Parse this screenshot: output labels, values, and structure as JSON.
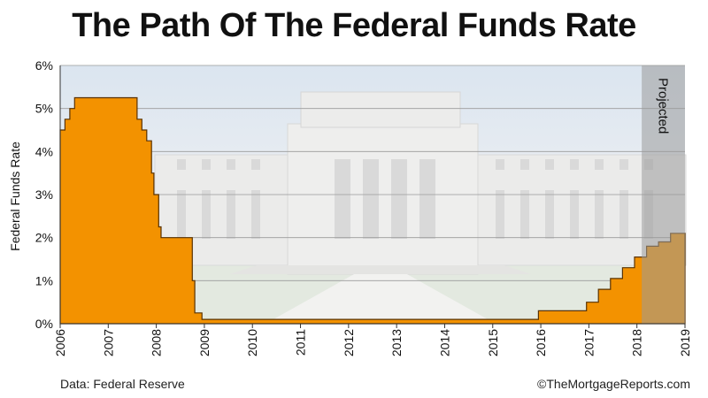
{
  "header": {
    "title": "The Path Of The Federal Funds Rate"
  },
  "footer": {
    "source": "Data: Federal Reserve",
    "credit": "©TheMortgageReports.com"
  },
  "chart_data": {
    "type": "area",
    "title": "The Path Of The Federal Funds Rate",
    "xlabel": "",
    "ylabel": "Federal Funds Rate",
    "xlim": [
      2006,
      2019
    ],
    "ylim": [
      0,
      6
    ],
    "x_ticks": [
      "2006",
      "2007",
      "2008",
      "2009",
      "2010",
      "2011",
      "2012",
      "2013",
      "2014",
      "2015",
      "2016",
      "2017",
      "2018",
      "2019"
    ],
    "y_ticks": [
      "0%",
      "1%",
      "2%",
      "3%",
      "4%",
      "5%",
      "6%"
    ],
    "y_tick_values": [
      0,
      1,
      2,
      3,
      4,
      5,
      6
    ],
    "grid": true,
    "area_color": "#f39200",
    "projected_region": {
      "label": "Projected",
      "x_start": 2018.1,
      "x_end": 2019
    },
    "series": [
      {
        "x": [
          2006.0,
          2006.1,
          2006.1,
          2006.2,
          2006.2,
          2006.3,
          2006.3,
          2006.4,
          2006.4,
          2007.6,
          2007.6,
          2007.7,
          2007.7,
          2007.8,
          2007.8,
          2007.9,
          2007.9,
          2007.95,
          2007.95,
          2008.05,
          2008.05,
          2008.1,
          2008.1,
          2008.15,
          2008.15,
          2008.2,
          2008.2,
          2008.3,
          2008.3,
          2008.75,
          2008.75,
          2008.8,
          2008.8,
          2008.95,
          2008.95,
          2015.95,
          2015.95,
          2016.95,
          2016.95,
          2017.2,
          2017.2,
          2017.45,
          2017.45,
          2017.7,
          2017.7,
          2017.95,
          2017.95,
          2018.2,
          2018.2,
          2018.45,
          2018.45,
          2018.7,
          2018.7,
          2018.95,
          2018.95,
          2019.0
        ],
        "y": [
          4.5,
          4.5,
          4.75,
          4.75,
          5.0,
          5.0,
          5.25,
          5.25,
          5.25,
          5.25,
          4.75,
          4.75,
          4.5,
          4.5,
          4.25,
          4.25,
          3.5,
          3.5,
          3.0,
          3.0,
          2.25,
          2.25,
          2.0,
          2.0,
          2.0,
          2.0,
          2.0,
          2.0,
          2.0,
          2.0,
          1.0,
          1.0,
          0.25,
          0.25,
          0.1,
          0.1,
          0.3,
          0.3,
          0.5,
          0.5,
          0.8,
          0.8,
          1.05,
          1.05,
          1.3,
          1.3,
          1.55,
          1.55,
          1.8,
          1.8,
          1.9,
          1.9,
          2.1,
          2.1,
          2.1,
          2.1
        ]
      }
    ]
  }
}
